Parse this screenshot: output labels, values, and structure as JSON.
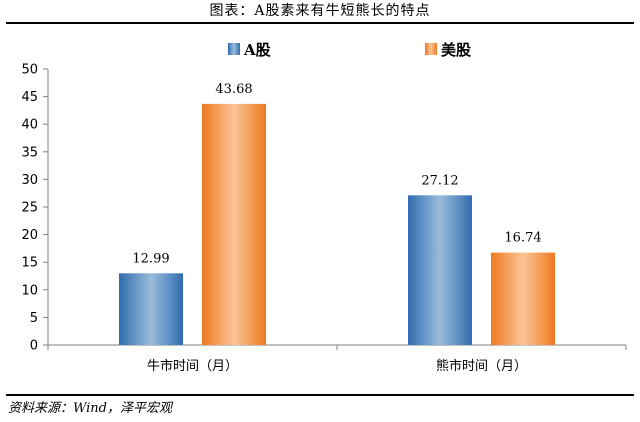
{
  "header": {
    "title": "图表：A股素来有牛短熊长的特点"
  },
  "footer": {
    "source": "资料来源：Wind，泽平宏观"
  },
  "chart_data": {
    "type": "bar",
    "categories": [
      "牛市时间（月）",
      "熊市时间（月）"
    ],
    "series": [
      {
        "name": "A股",
        "values": [
          12.99,
          27.12
        ],
        "color": "#3d7fc0"
      },
      {
        "name": "美股",
        "values": [
          43.68,
          16.74
        ],
        "color": "#f07e22"
      }
    ],
    "data_labels": [
      [
        "12.99",
        "27.12"
      ],
      [
        "43.68",
        "16.74"
      ]
    ],
    "ylim": [
      0,
      50
    ],
    "yticks": [
      0,
      5,
      10,
      15,
      20,
      25,
      30,
      35,
      40,
      45,
      50
    ],
    "legend": "top-center",
    "grid": false
  }
}
